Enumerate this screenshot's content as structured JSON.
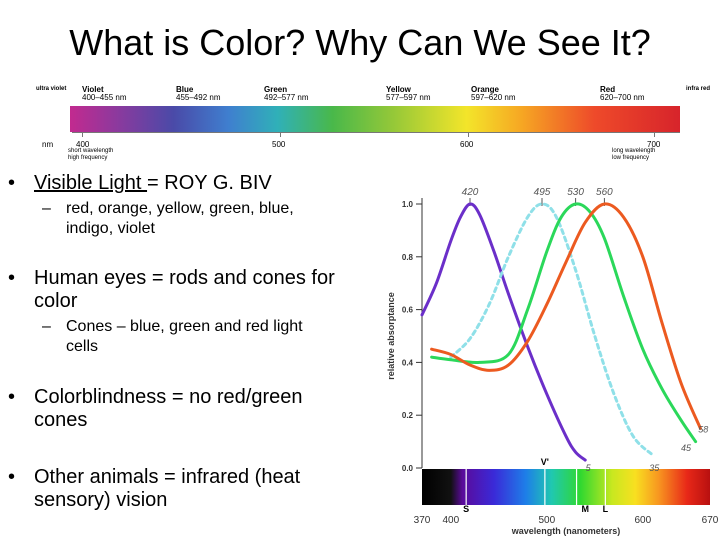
{
  "title": "What is Color?  Why Can We See It?",
  "spectrum": {
    "bands": [
      {
        "name": "ultra violet",
        "range": ""
      },
      {
        "name": "Violet",
        "range": "400–455 nm"
      },
      {
        "name": "Blue",
        "range": "455–492 nm"
      },
      {
        "name": "Green",
        "range": "492–577 nm"
      },
      {
        "name": "Yellow",
        "range": "577–597 nm"
      },
      {
        "name": "Orange",
        "range": "597–620 nm"
      },
      {
        "name": "Red",
        "range": "620–700 nm"
      },
      {
        "name": "infra red",
        "range": ""
      }
    ],
    "unit": "nm",
    "scale": [
      "400",
      "500",
      "600",
      "700"
    ],
    "short_label": "short wavelength",
    "short_sub": "high frequency",
    "long_label": "long wavelength",
    "long_sub": "low frequency"
  },
  "bullets": [
    {
      "pre": "Visible Light ",
      "text": "= ROY G. BIV",
      "sub": [
        "red, orange, yellow, green, blue,",
        "indigo, violet"
      ]
    },
    {
      "text": [
        "Human eyes = rods and cones for",
        "color"
      ],
      "sub": [
        "Cones – blue, green and red light",
        "cells"
      ]
    },
    {
      "text": [
        "Colorblindness = no red/green",
        "cones"
      ]
    },
    {
      "text": [
        "Other animals = infrared (heat",
        "sensory) vision"
      ]
    }
  ],
  "chart_data": {
    "type": "line",
    "xlabel": "wavelength (nanometers)",
    "ylabel": "relative absorptance",
    "xlim": [
      370,
      670
    ],
    "ylim": [
      0,
      1.0
    ],
    "x_ticks": [
      "370",
      "400",
      "500",
      "600",
      "670"
    ],
    "y_ticks": [
      "0.0",
      "0.2",
      "0.4",
      "0.6",
      "0.8",
      "1.0"
    ],
    "peak_labels": [
      "420",
      "495",
      "530",
      "560"
    ],
    "end_labels": [
      "5",
      "35",
      "45",
      "58"
    ],
    "bar_labels": [
      "S",
      "V'",
      "M",
      "L"
    ],
    "series": [
      {
        "color": "#6b2fc9",
        "dash": false,
        "x": [
          370,
          385,
          400,
          410,
          420,
          430,
          445,
          460,
          480,
          500,
          520,
          530,
          540
        ],
        "y": [
          0.58,
          0.7,
          0.86,
          0.95,
          1.0,
          0.96,
          0.82,
          0.66,
          0.46,
          0.28,
          0.12,
          0.06,
          0.03
        ]
      },
      {
        "color": "#8fe0e8",
        "dash": true,
        "x": [
          400,
          420,
          440,
          460,
          480,
          495,
          510,
          530,
          550,
          570,
          590,
          610
        ],
        "y": [
          0.42,
          0.49,
          0.62,
          0.8,
          0.95,
          1.0,
          0.95,
          0.75,
          0.5,
          0.28,
          0.12,
          0.05
        ]
      },
      {
        "color": "#2bd85a",
        "dash": false,
        "x": [
          380,
          400,
          430,
          460,
          480,
          500,
          515,
          530,
          545,
          560,
          580,
          600,
          620,
          640,
          655
        ],
        "y": [
          0.42,
          0.41,
          0.4,
          0.43,
          0.6,
          0.82,
          0.95,
          1.0,
          0.97,
          0.87,
          0.65,
          0.45,
          0.3,
          0.18,
          0.1
        ]
      },
      {
        "color": "#ec5a20",
        "dash": false,
        "x": [
          380,
          400,
          420,
          440,
          460,
          480,
          500,
          520,
          540,
          560,
          580,
          600,
          620,
          640,
          660
        ],
        "y": [
          0.45,
          0.43,
          0.39,
          0.37,
          0.39,
          0.48,
          0.62,
          0.78,
          0.93,
          1.0,
          0.95,
          0.8,
          0.55,
          0.32,
          0.15
        ]
      }
    ]
  }
}
